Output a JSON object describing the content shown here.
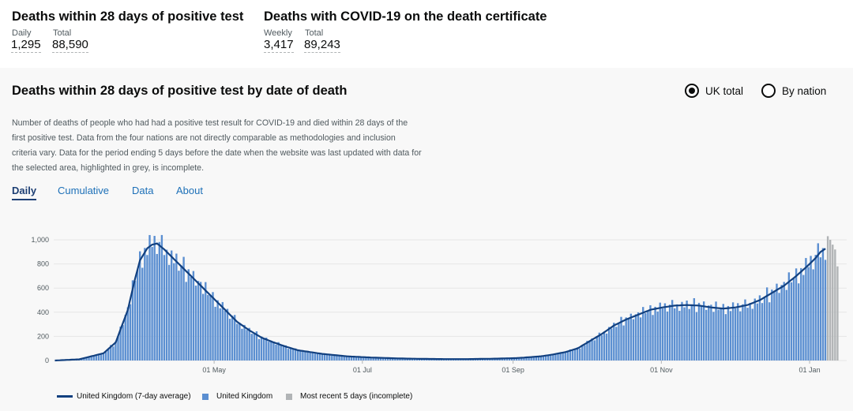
{
  "headline1": {
    "title": "Deaths within 28 days of positive test",
    "daily_label": "Daily",
    "daily_value": "1,295",
    "total_label": "Total",
    "total_value": "88,590"
  },
  "headline2": {
    "title": "Deaths with COVID-19 on the death certificate",
    "weekly_label": "Weekly",
    "weekly_value": "3,417",
    "total_label": "Total",
    "total_value": "89,243"
  },
  "card": {
    "title": "Deaths within 28 days of positive test by date of death",
    "radio_uk": "UK total",
    "radio_nation": "By nation",
    "description": "Number of deaths of people who had had a positive test result for COVID-19 and died within 28 days of the first positive test. Data from the four nations are not directly comparable as methodologies and inclusion criteria vary. Data for the period ending 5 days before the date when the website was last updated with data for the selected area, highlighted in grey, is incomplete.",
    "tabs": [
      "Daily",
      "Cumulative",
      "Data",
      "About"
    ]
  },
  "colors": {
    "line": "#12407f",
    "bar": "#5b8fd1",
    "incomplete": "#b1b4b6"
  },
  "chart_data": {
    "type": "bar",
    "x_tick_labels": [
      "01 May",
      "01 Jul",
      "01 Sep",
      "01 Nov",
      "01 Jan"
    ],
    "y_tick_labels": [
      "0",
      "200",
      "400",
      "600",
      "800",
      "1,000"
    ],
    "ylim": [
      0,
      1100
    ],
    "grid": "horizontal",
    "legend": [
      {
        "label": "United Kingdom (7-day average)",
        "kind": "line",
        "color": "#12407f"
      },
      {
        "label": "United Kingdom",
        "kind": "bar",
        "color": "#5b8fd1"
      },
      {
        "label": "Most recent 5 days (incomplete)",
        "kind": "bar",
        "color": "#b1b4b6"
      }
    ],
    "avg_anchors": [
      [
        0,
        0
      ],
      [
        10,
        10
      ],
      [
        20,
        60
      ],
      [
        25,
        150
      ],
      [
        30,
        420
      ],
      [
        33,
        680
      ],
      [
        35,
        830
      ],
      [
        38,
        930
      ],
      [
        40,
        960
      ],
      [
        42,
        970
      ],
      [
        45,
        920
      ],
      [
        50,
        820
      ],
      [
        55,
        720
      ],
      [
        60,
        620
      ],
      [
        65,
        520
      ],
      [
        70,
        420
      ],
      [
        75,
        320
      ],
      [
        80,
        250
      ],
      [
        85,
        190
      ],
      [
        90,
        150
      ],
      [
        95,
        115
      ],
      [
        100,
        85
      ],
      [
        105,
        70
      ],
      [
        110,
        55
      ],
      [
        115,
        45
      ],
      [
        120,
        35
      ],
      [
        130,
        25
      ],
      [
        140,
        18
      ],
      [
        150,
        14
      ],
      [
        160,
        12
      ],
      [
        170,
        12
      ],
      [
        180,
        15
      ],
      [
        190,
        20
      ],
      [
        200,
        35
      ],
      [
        205,
        50
      ],
      [
        210,
        70
      ],
      [
        215,
        100
      ],
      [
        220,
        160
      ],
      [
        225,
        220
      ],
      [
        230,
        290
      ],
      [
        235,
        340
      ],
      [
        240,
        380
      ],
      [
        245,
        420
      ],
      [
        250,
        440
      ],
      [
        255,
        455
      ],
      [
        260,
        460
      ],
      [
        265,
        455
      ],
      [
        270,
        440
      ],
      [
        275,
        430
      ],
      [
        280,
        440
      ],
      [
        285,
        460
      ],
      [
        290,
        500
      ],
      [
        295,
        560
      ],
      [
        300,
        620
      ],
      [
        305,
        700
      ],
      [
        310,
        790
      ],
      [
        313,
        850
      ],
      [
        315,
        900
      ],
      [
        318,
        940
      ],
      [
        320,
        960
      ],
      [
        322,
        980
      ]
    ],
    "bar_noise": [
      0.05,
      -0.08,
      0.12,
      -0.03,
      0.0,
      0.09,
      -0.11,
      0.04,
      -0.06,
      0.1,
      -0.02,
      0.07,
      -0.09,
      0.03,
      0.11,
      -0.05,
      0.02,
      -0.1,
      0.06,
      -0.04,
      0.08,
      -0.07,
      0.01,
      0.13,
      -0.12,
      0.05,
      -0.01,
      0.09,
      -0.06,
      0.03
    ],
    "total_days": 323,
    "incomplete_days": 5
  }
}
